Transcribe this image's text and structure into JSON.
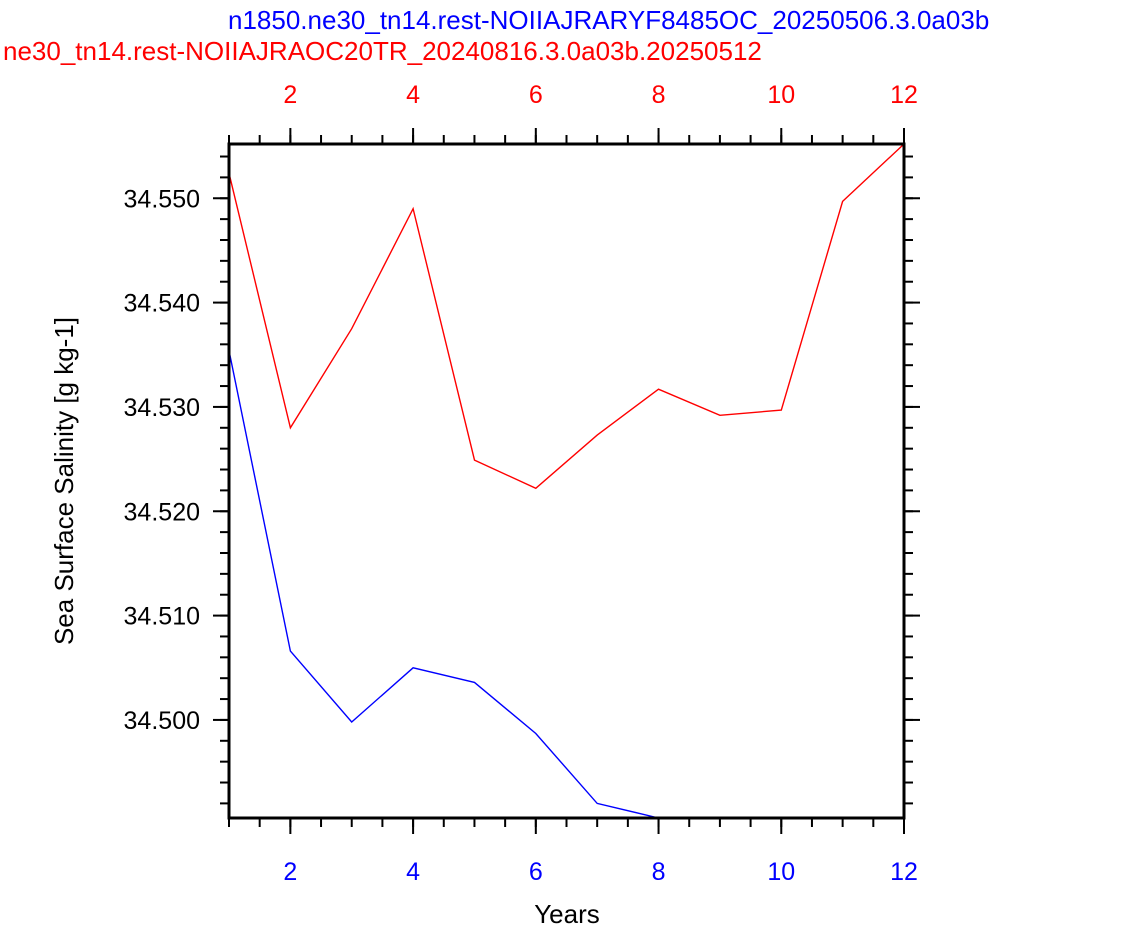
{
  "chart_data": {
    "type": "line",
    "title_top_blue": "n1850.ne30_tn14.rest-NOIIAJRARYF8485OC_20250506.3.0a03b",
    "title_top_red": "ne30_tn14.rest-NOIIAJRAOC20TR_20240816.3.0a03b.20250512",
    "xlabel": "Years",
    "ylabel": "Sea Surface Salinity [g kg-1]",
    "xlim": [
      1,
      12
    ],
    "ylim": [
      34.4906,
      34.5552
    ],
    "x_ticks": [
      2,
      4,
      6,
      8,
      10,
      12
    ],
    "x_tick_labels": [
      "2",
      "4",
      "6",
      "8",
      "10",
      "12"
    ],
    "y_ticks": [
      34.5,
      34.51,
      34.52,
      34.53,
      34.54,
      34.55
    ],
    "y_tick_labels": [
      "34.500",
      "34.510",
      "34.520",
      "34.530",
      "34.540",
      "34.550"
    ],
    "series": [
      {
        "color": "#ff0000",
        "axis": "top",
        "x": [
          1,
          2,
          3,
          4,
          5,
          6,
          7,
          8,
          9,
          10,
          11,
          12
        ],
        "values": [
          34.5524,
          34.528,
          34.5375,
          34.549,
          34.5249,
          34.5222,
          34.5273,
          34.5317,
          34.5292,
          34.5297,
          34.5497,
          34.5552
        ]
      },
      {
        "color": "#0000ff",
        "axis": "bottom",
        "x": [
          1,
          2,
          3,
          4,
          5,
          6,
          7,
          8
        ],
        "values": [
          34.5354,
          34.5066,
          34.4998,
          34.505,
          34.5036,
          34.4987,
          34.492,
          34.4906
        ]
      }
    ],
    "grid": false,
    "legend": "none"
  }
}
